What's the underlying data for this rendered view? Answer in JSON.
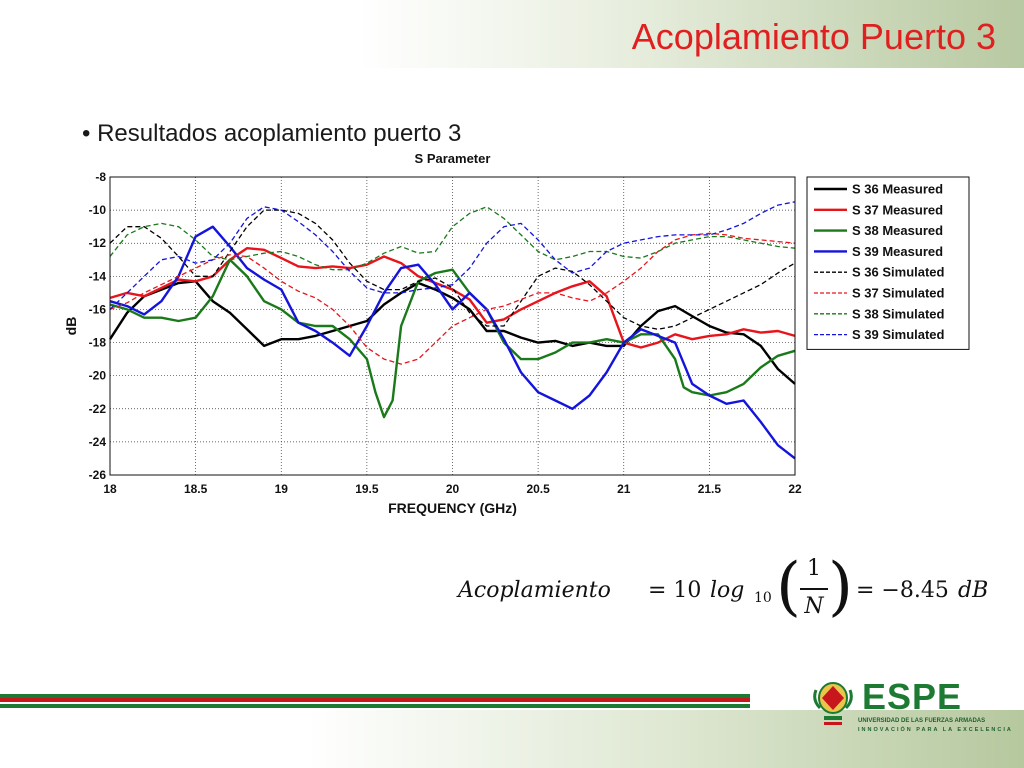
{
  "slide": {
    "title": "Acoplamiento Puerto 3",
    "bullet": "Resultados acoplamiento puerto 3"
  },
  "formula": {
    "lhs": "Acoplamiento",
    "eq1": "= 10",
    "log": "log",
    "log_sub": "10",
    "num": "1",
    "den": "N",
    "rhs": "= −8.45",
    "unit": "dB"
  },
  "logo": {
    "word": "ESPE",
    "tagline1": "UNIVERSIDAD DE LAS FUERZAS ARMADAS",
    "tagline2": "INNOVACIÓN PARA LA EXCELENCIA"
  },
  "colors": {
    "title": "#e02020",
    "footer_red": "#c8161d",
    "footer_green": "#1d7a33",
    "logo_green": "#1d7a33"
  },
  "chart_data": {
    "type": "line",
    "title": "S Parameter",
    "xlabel": "FREQUENCY (GHz)",
    "ylabel": "dB",
    "xlim": [
      18,
      22
    ],
    "ylim": [
      -26,
      -8
    ],
    "xticks": [
      "18",
      "18.5",
      "19",
      "19.5",
      "20",
      "20.5",
      "21",
      "21.5",
      "22"
    ],
    "yticks": [
      "-8",
      "-10",
      "-12",
      "-14",
      "-16",
      "-18",
      "-20",
      "-22",
      "-24",
      "-26"
    ],
    "grid": true,
    "legend_position": "top-right",
    "series": [
      {
        "name": "S 36 Measured",
        "color": "#000000",
        "dash": false,
        "x": [
          18.0,
          18.1,
          18.2,
          18.3,
          18.4,
          18.5,
          18.6,
          18.7,
          18.8,
          18.9,
          19.0,
          19.1,
          19.2,
          19.3,
          19.4,
          19.5,
          19.6,
          19.7,
          19.8,
          19.9,
          20.0,
          20.1,
          20.2,
          20.3,
          20.4,
          20.5,
          20.6,
          20.7,
          20.8,
          20.9,
          21.0,
          21.1,
          21.2,
          21.3,
          21.4,
          21.5,
          21.6,
          21.7,
          21.8,
          21.9,
          22.0
        ],
        "y": [
          -17.8,
          -16.2,
          -15.2,
          -14.8,
          -14.4,
          -14.3,
          -15.5,
          -16.2,
          -17.2,
          -18.2,
          -17.8,
          -17.8,
          -17.6,
          -17.3,
          -17.0,
          -16.7,
          -15.7,
          -15.0,
          -14.4,
          -14.8,
          -15.3,
          -16.0,
          -17.3,
          -17.3,
          -17.7,
          -18.0,
          -17.9,
          -18.2,
          -18.0,
          -18.2,
          -18.2,
          -17.0,
          -16.1,
          -15.8,
          -16.4,
          -17.0,
          -17.4,
          -17.5,
          -18.2,
          -19.6,
          -20.5
        ]
      },
      {
        "name": "S 37 Measured",
        "color": "#e8141c",
        "dash": false,
        "x": [
          18.0,
          18.1,
          18.2,
          18.3,
          18.4,
          18.5,
          18.6,
          18.7,
          18.8,
          18.9,
          19.0,
          19.1,
          19.2,
          19.3,
          19.4,
          19.5,
          19.6,
          19.7,
          19.8,
          19.9,
          20.0,
          20.1,
          20.2,
          20.3,
          20.4,
          20.5,
          20.6,
          20.7,
          20.8,
          20.9,
          21.0,
          21.1,
          21.2,
          21.3,
          21.4,
          21.5,
          21.6,
          21.7,
          21.8,
          21.9,
          22.0
        ],
        "y": [
          -15.3,
          -15.0,
          -15.2,
          -14.7,
          -14.2,
          -14.3,
          -14.0,
          -13.0,
          -12.3,
          -12.4,
          -12.9,
          -13.4,
          -13.5,
          -13.4,
          -13.5,
          -13.3,
          -12.8,
          -13.2,
          -14.0,
          -14.4,
          -14.8,
          -15.4,
          -16.8,
          -16.6,
          -16.0,
          -15.5,
          -15.0,
          -14.6,
          -14.3,
          -15.2,
          -18.0,
          -18.3,
          -18.0,
          -17.5,
          -17.8,
          -17.6,
          -17.5,
          -17.2,
          -17.4,
          -17.3,
          -17.6
        ]
      },
      {
        "name": "S 38 Measured",
        "color": "#1a7a1a",
        "dash": false,
        "x": [
          18.0,
          18.1,
          18.2,
          18.3,
          18.4,
          18.5,
          18.6,
          18.7,
          18.8,
          18.9,
          19.0,
          19.1,
          19.2,
          19.3,
          19.4,
          19.5,
          19.55,
          19.6,
          19.65,
          19.7,
          19.8,
          19.9,
          20.0,
          20.1,
          20.2,
          20.3,
          20.4,
          20.5,
          20.6,
          20.7,
          20.8,
          20.9,
          21.0,
          21.1,
          21.2,
          21.3,
          21.35,
          21.4,
          21.5,
          21.6,
          21.7,
          21.8,
          21.9,
          22.0
        ],
        "y": [
          -15.7,
          -16.0,
          -16.5,
          -16.5,
          -16.7,
          -16.5,
          -15.2,
          -13.0,
          -14.0,
          -15.5,
          -16.0,
          -16.8,
          -17.0,
          -17.0,
          -17.8,
          -19.0,
          -21.0,
          -22.5,
          -21.5,
          -17.0,
          -14.3,
          -13.8,
          -13.6,
          -15.0,
          -16.0,
          -18.0,
          -19.0,
          -19.0,
          -18.6,
          -18.0,
          -18.0,
          -17.8,
          -18.0,
          -17.5,
          -17.5,
          -19.0,
          -20.7,
          -21.0,
          -21.2,
          -21.0,
          -20.5,
          -19.5,
          -18.8,
          -18.5
        ]
      },
      {
        "name": "S 39 Measured",
        "color": "#1414dc",
        "dash": false,
        "x": [
          18.0,
          18.1,
          18.2,
          18.3,
          18.4,
          18.5,
          18.6,
          18.7,
          18.8,
          18.9,
          19.0,
          19.1,
          19.2,
          19.3,
          19.4,
          19.5,
          19.6,
          19.7,
          19.8,
          19.9,
          20.0,
          20.1,
          20.2,
          20.3,
          20.4,
          20.5,
          20.6,
          20.7,
          20.8,
          20.9,
          21.0,
          21.1,
          21.2,
          21.3,
          21.4,
          21.5,
          21.6,
          21.7,
          21.8,
          21.9,
          22.0
        ],
        "y": [
          -15.5,
          -15.8,
          -16.3,
          -15.5,
          -14.0,
          -11.6,
          -11.0,
          -12.2,
          -13.5,
          -14.2,
          -14.8,
          -16.8,
          -17.3,
          -18.0,
          -18.8,
          -17.0,
          -15.0,
          -13.5,
          -13.3,
          -14.5,
          -16.0,
          -15.0,
          -16.0,
          -17.8,
          -19.8,
          -21.0,
          -21.5,
          -22.0,
          -21.2,
          -19.8,
          -18.0,
          -17.2,
          -17.6,
          -18.0,
          -20.5,
          -21.2,
          -21.7,
          -21.5,
          -22.8,
          -24.2,
          -25.0
        ]
      },
      {
        "name": "S 36 Simulated",
        "color": "#000000",
        "dash": true,
        "x": [
          18.0,
          18.1,
          18.2,
          18.3,
          18.4,
          18.5,
          18.6,
          18.7,
          18.8,
          18.9,
          19.0,
          19.1,
          19.2,
          19.3,
          19.4,
          19.5,
          19.6,
          19.7,
          19.8,
          19.9,
          20.0,
          20.1,
          20.2,
          20.3,
          20.4,
          20.5,
          20.6,
          20.7,
          20.8,
          20.9,
          21.0,
          21.1,
          21.2,
          21.3,
          21.4,
          21.5,
          21.6,
          21.7,
          21.8,
          21.9,
          22.0
        ],
        "y": [
          -12.0,
          -11.0,
          -11.0,
          -11.7,
          -12.8,
          -14.0,
          -14.0,
          -12.5,
          -11.0,
          -10.0,
          -10.0,
          -10.2,
          -10.8,
          -11.8,
          -13.2,
          -14.3,
          -14.8,
          -14.8,
          -14.3,
          -14.1,
          -14.7,
          -16.2,
          -17.0,
          -17.0,
          -15.5,
          -14.0,
          -13.5,
          -13.7,
          -14.5,
          -15.5,
          -16.5,
          -17.0,
          -17.2,
          -17.0,
          -16.5,
          -16.0,
          -15.5,
          -15.0,
          -14.5,
          -13.8,
          -13.2
        ]
      },
      {
        "name": "S 37 Simulated",
        "color": "#e8141c",
        "dash": true,
        "x": [
          18.0,
          18.1,
          18.2,
          18.3,
          18.4,
          18.5,
          18.6,
          18.7,
          18.8,
          18.9,
          19.0,
          19.1,
          19.2,
          19.3,
          19.4,
          19.5,
          19.6,
          19.7,
          19.8,
          19.9,
          20.0,
          20.1,
          20.2,
          20.3,
          20.4,
          20.5,
          20.6,
          20.7,
          20.8,
          20.9,
          21.0,
          21.1,
          21.2,
          21.3,
          21.4,
          21.5,
          21.6,
          21.7,
          21.8,
          21.9,
          22.0
        ],
        "y": [
          -16.0,
          -15.6,
          -15.0,
          -14.5,
          -14.0,
          -13.5,
          -13.0,
          -12.7,
          -12.8,
          -13.5,
          -14.3,
          -14.9,
          -15.3,
          -16.0,
          -17.0,
          -18.3,
          -19.0,
          -19.3,
          -19.0,
          -18.0,
          -17.0,
          -16.5,
          -16.0,
          -15.8,
          -15.4,
          -15.0,
          -15.0,
          -15.3,
          -15.5,
          -15.0,
          -14.3,
          -13.5,
          -12.5,
          -11.8,
          -11.5,
          -11.4,
          -11.5,
          -11.7,
          -11.8,
          -11.9,
          -12.0
        ]
      },
      {
        "name": "S 38 Simulated",
        "color": "#1a7a1a",
        "dash": true,
        "x": [
          18.0,
          18.1,
          18.2,
          18.3,
          18.4,
          18.5,
          18.6,
          18.7,
          18.8,
          18.9,
          19.0,
          19.1,
          19.2,
          19.3,
          19.4,
          19.5,
          19.6,
          19.7,
          19.8,
          19.9,
          20.0,
          20.1,
          20.2,
          20.3,
          20.4,
          20.5,
          20.6,
          20.7,
          20.8,
          20.9,
          21.0,
          21.1,
          21.2,
          21.3,
          21.4,
          21.5,
          21.6,
          21.7,
          21.8,
          21.9,
          22.0
        ],
        "y": [
          -12.8,
          -11.5,
          -11.0,
          -10.8,
          -11.0,
          -11.8,
          -12.8,
          -13.0,
          -12.8,
          -12.6,
          -12.5,
          -12.8,
          -13.3,
          -13.6,
          -13.6,
          -13.2,
          -12.6,
          -12.2,
          -12.6,
          -12.5,
          -11.0,
          -10.2,
          -9.8,
          -10.5,
          -11.5,
          -12.5,
          -13.0,
          -12.8,
          -12.5,
          -12.5,
          -12.8,
          -12.9,
          -12.5,
          -12.0,
          -11.8,
          -11.6,
          -11.6,
          -11.8,
          -12.0,
          -12.2,
          -12.3
        ]
      },
      {
        "name": "S 39 Simulated",
        "color": "#1414dc",
        "dash": true,
        "x": [
          18.0,
          18.1,
          18.2,
          18.3,
          18.4,
          18.5,
          18.6,
          18.7,
          18.8,
          18.9,
          19.0,
          19.1,
          19.2,
          19.3,
          19.4,
          19.5,
          19.6,
          19.7,
          19.8,
          19.9,
          20.0,
          20.1,
          20.2,
          20.3,
          20.4,
          20.5,
          20.6,
          20.7,
          20.8,
          20.9,
          21.0,
          21.1,
          21.2,
          21.3,
          21.4,
          21.5,
          21.6,
          21.7,
          21.8,
          21.9,
          22.0
        ],
        "y": [
          -16.0,
          -15.0,
          -14.0,
          -13.0,
          -12.8,
          -13.2,
          -13.0,
          -12.0,
          -10.5,
          -9.8,
          -10.0,
          -10.7,
          -11.5,
          -12.5,
          -13.7,
          -14.7,
          -15.0,
          -15.0,
          -14.8,
          -14.7,
          -14.5,
          -13.5,
          -12.0,
          -11.0,
          -10.8,
          -11.8,
          -13.0,
          -13.8,
          -13.5,
          -12.5,
          -12.0,
          -11.8,
          -11.6,
          -11.5,
          -11.5,
          -11.5,
          -11.2,
          -10.8,
          -10.2,
          -9.7,
          -9.5
        ]
      }
    ]
  }
}
